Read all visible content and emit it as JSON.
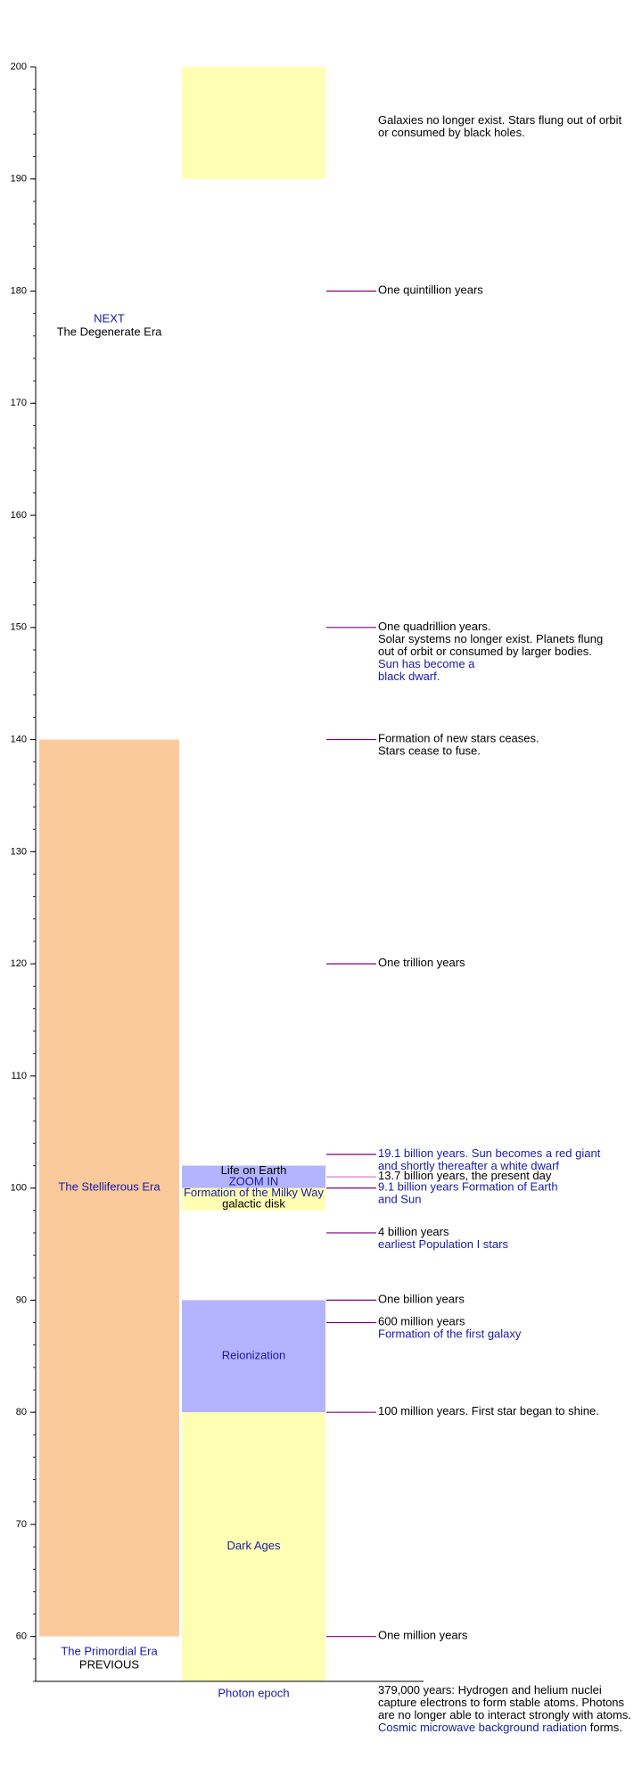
{
  "chart_data": {
    "type": "timeline",
    "ylim": [
      56,
      200
    ],
    "yticks": [
      60,
      70,
      80,
      90,
      100,
      110,
      120,
      130,
      140,
      150,
      160,
      170,
      180,
      190,
      200
    ],
    "minor_tick_interval": 2,
    "axis_color": "#000000",
    "eras": [
      {
        "from": 60,
        "to": 140,
        "color": "#fbca9b",
        "lines": [
          [
            {
              "text": "The Stelliferous Era",
              "color": "#1a1aa6"
            }
          ]
        ]
      },
      {
        "from": 56,
        "to": 60,
        "color": "#ffffff",
        "lines": [
          [
            {
              "text": "The Primordial Era",
              "color": "#1a1aa6"
            }
          ],
          [
            {
              "text": "PREVIOUS",
              "color": "#000000"
            }
          ]
        ]
      }
    ],
    "next_era": {
      "lines": [
        [
          {
            "text": "NEXT",
            "color": "#1a1aa6"
          }
        ],
        [
          {
            "text": "The Degenerate Era",
            "color": "#000000"
          }
        ]
      ]
    },
    "epochs": [
      {
        "from": 190,
        "to": 200,
        "color": "#ffffb3",
        "lines": []
      },
      {
        "from": 100,
        "to": 102,
        "color": "#b3b3ff",
        "lines": [
          [
            {
              "text": "Life on Earth",
              "color": "#000000"
            }
          ],
          [
            {
              "text": "ZOOM  IN",
              "color": "#1a1aa6"
            }
          ]
        ]
      },
      {
        "from": 98,
        "to": 100,
        "color": "#ffffb3",
        "lines": [
          [
            {
              "text": "Formation of the Milky Way",
              "color": "#1a1aa6"
            }
          ],
          [
            {
              "text": "galactic disk",
              "color": "#000000"
            }
          ]
        ]
      },
      {
        "from": 80,
        "to": 90,
        "color": "#b3b3ff",
        "lines": [
          [
            {
              "text": "Reionization",
              "color": "#1a1aa6"
            }
          ]
        ]
      },
      {
        "from": 56,
        "to": 80,
        "color": "#ffffb3",
        "lines": [
          [
            {
              "text": "Dark Ages",
              "color": "#1a1aa6"
            }
          ]
        ]
      }
    ],
    "photon_epoch": {
      "text": "Photon epoch",
      "color": "#1a1aa6"
    },
    "events": [
      {
        "value": 180,
        "line_color": "#800080",
        "lines": [
          [
            {
              "text": "One quintillion years",
              "color": "#000000"
            }
          ]
        ]
      },
      {
        "value": 150,
        "line_color": "#800080",
        "lines": [
          [
            {
              "text": "One quadrillion years.",
              "color": "#000000"
            }
          ],
          [
            {
              "text": "Solar systems no longer exist. Planets flung",
              "color": "#000000"
            }
          ],
          [
            {
              "text": "out of orbit or consumed by larger bodies.",
              "color": "#000000"
            }
          ],
          [
            {
              "text": "Sun has become a",
              "color": "#1a1aa6"
            }
          ],
          [
            {
              "text": "black dwarf.",
              "color": "#1a1aa6"
            }
          ]
        ]
      },
      {
        "value": 140,
        "line_color": "#800080",
        "lines": [
          [
            {
              "text": "Formation of new stars ceases.",
              "color": "#000000"
            }
          ],
          [
            {
              "text": "Stars cease to fuse.",
              "color": "#000000"
            }
          ]
        ]
      },
      {
        "value": 120,
        "line_color": "#800080",
        "lines": [
          [
            {
              "text": "One trillion years",
              "color": "#000000"
            }
          ]
        ]
      },
      {
        "value": 103,
        "line_color": "#800080",
        "lines": [
          [
            {
              "text": "19.1 billion years. Sun becomes a red giant",
              "color": "#1a1aa6"
            }
          ],
          [
            {
              "text": "and shortly thereafter a white dwarf",
              "color": "#1a1aa6"
            }
          ]
        ]
      },
      {
        "value": 101,
        "line_color": "#d070d0",
        "lines": [
          [
            {
              "text": "13.7 billion years, the present day",
              "color": "#000000"
            }
          ]
        ]
      },
      {
        "value": 100,
        "line_color": "#800080",
        "lines": [
          [
            {
              "text": "9.1 billion years Formation of Earth",
              "color": "#1a1aa6"
            }
          ],
          [
            {
              "text": "and Sun",
              "color": "#1a1aa6"
            }
          ]
        ]
      },
      {
        "value": 96,
        "line_color": "#800080",
        "lines": [
          [
            {
              "text": "4 billion years",
              "color": "#000000"
            }
          ],
          [
            {
              "text": "earliest  Population I stars",
              "color": "#1a1aa6"
            }
          ]
        ]
      },
      {
        "value": 90,
        "line_color": "#800080",
        "lines": [
          [
            {
              "text": "One billion years",
              "color": "#000000"
            }
          ]
        ]
      },
      {
        "value": 88,
        "line_color": "#800080",
        "lines": [
          [
            {
              "text": "600 million years",
              "color": "#000000"
            }
          ],
          [
            {
              "text": "Formation of the first galaxy",
              "color": "#1a1aa6"
            }
          ]
        ]
      },
      {
        "value": 80,
        "line_color": "#800080",
        "lines": [
          [
            {
              "text": "100 million years. First star began to shine.",
              "color": "#000000"
            }
          ]
        ]
      },
      {
        "value": 60,
        "line_color": "#800080",
        "lines": [
          [
            {
              "text": "One million years",
              "color": "#000000"
            }
          ]
        ]
      }
    ],
    "notes": [
      {
        "lines": [
          [
            {
              "text": "Galaxies no longer exist. Stars flung out of orbit",
              "color": "#000000"
            }
          ],
          [
            {
              "text": "or consumed by black holes.",
              "color": "#000000"
            }
          ]
        ]
      },
      {
        "lines": [
          [
            {
              "text": "379,000 years: Hydrogen and helium nuclei",
              "color": "#000000"
            }
          ],
          [
            {
              "text": "capture electrons to form stable atoms. Photons",
              "color": "#000000"
            }
          ],
          [
            {
              "text": "are no longer able to interact strongly with atoms.",
              "color": "#000000"
            }
          ],
          [
            {
              "text": "Cosmic microwave background radiation",
              "color": "#1a1aa6"
            },
            {
              "text": " forms.",
              "color": "#000000"
            }
          ]
        ]
      }
    ]
  }
}
